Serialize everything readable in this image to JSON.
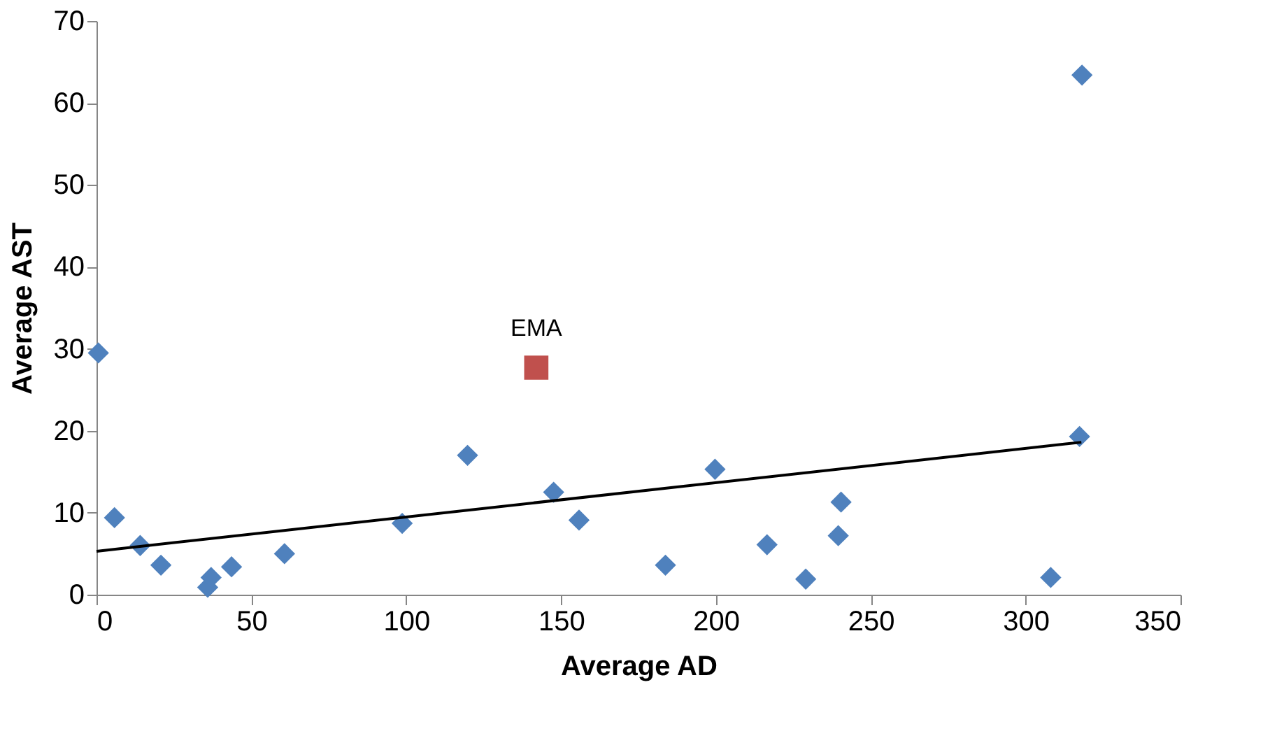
{
  "chart_data": {
    "type": "scatter",
    "xlabel": "Average AD",
    "ylabel": "Average AST",
    "xlim": [
      0,
      350
    ],
    "xticks": [
      0,
      50,
      100,
      150,
      200,
      250,
      300,
      350
    ],
    "ylim": [
      0,
      70
    ],
    "yticks": [
      0,
      10,
      20,
      30,
      40,
      50,
      60,
      70
    ],
    "grid": false,
    "series": [
      {
        "marker": "diamond",
        "color": "#4f81bd",
        "x": [
          0.6,
          5.8,
          14.1,
          20.8,
          35.9,
          37,
          43.6,
          60.7,
          98.7,
          119.8,
          147.6,
          155.8,
          183.7,
          199.7,
          216.5,
          229,
          239.5,
          240.4,
          308.1,
          317.4,
          318.2
        ],
        "values": [
          29.5,
          9.4,
          6.0,
          3.6,
          0.9,
          2.1,
          3.4,
          5.0,
          8.7,
          17.0,
          12.5,
          9.1,
          3.6,
          15.3,
          6.1,
          1.9,
          7.2,
          11.3,
          2.1,
          19.3,
          63.4
        ]
      },
      {
        "marker": "square",
        "name": "EMA",
        "color": "#c0504d",
        "x": [
          142
        ],
        "values": [
          27.7
        ]
      },
      {
        "type": "line",
        "line_style": "solid",
        "color": "#000000",
        "x": [
          0,
          318
        ],
        "values": [
          5.3,
          18.6
        ]
      }
    ]
  }
}
